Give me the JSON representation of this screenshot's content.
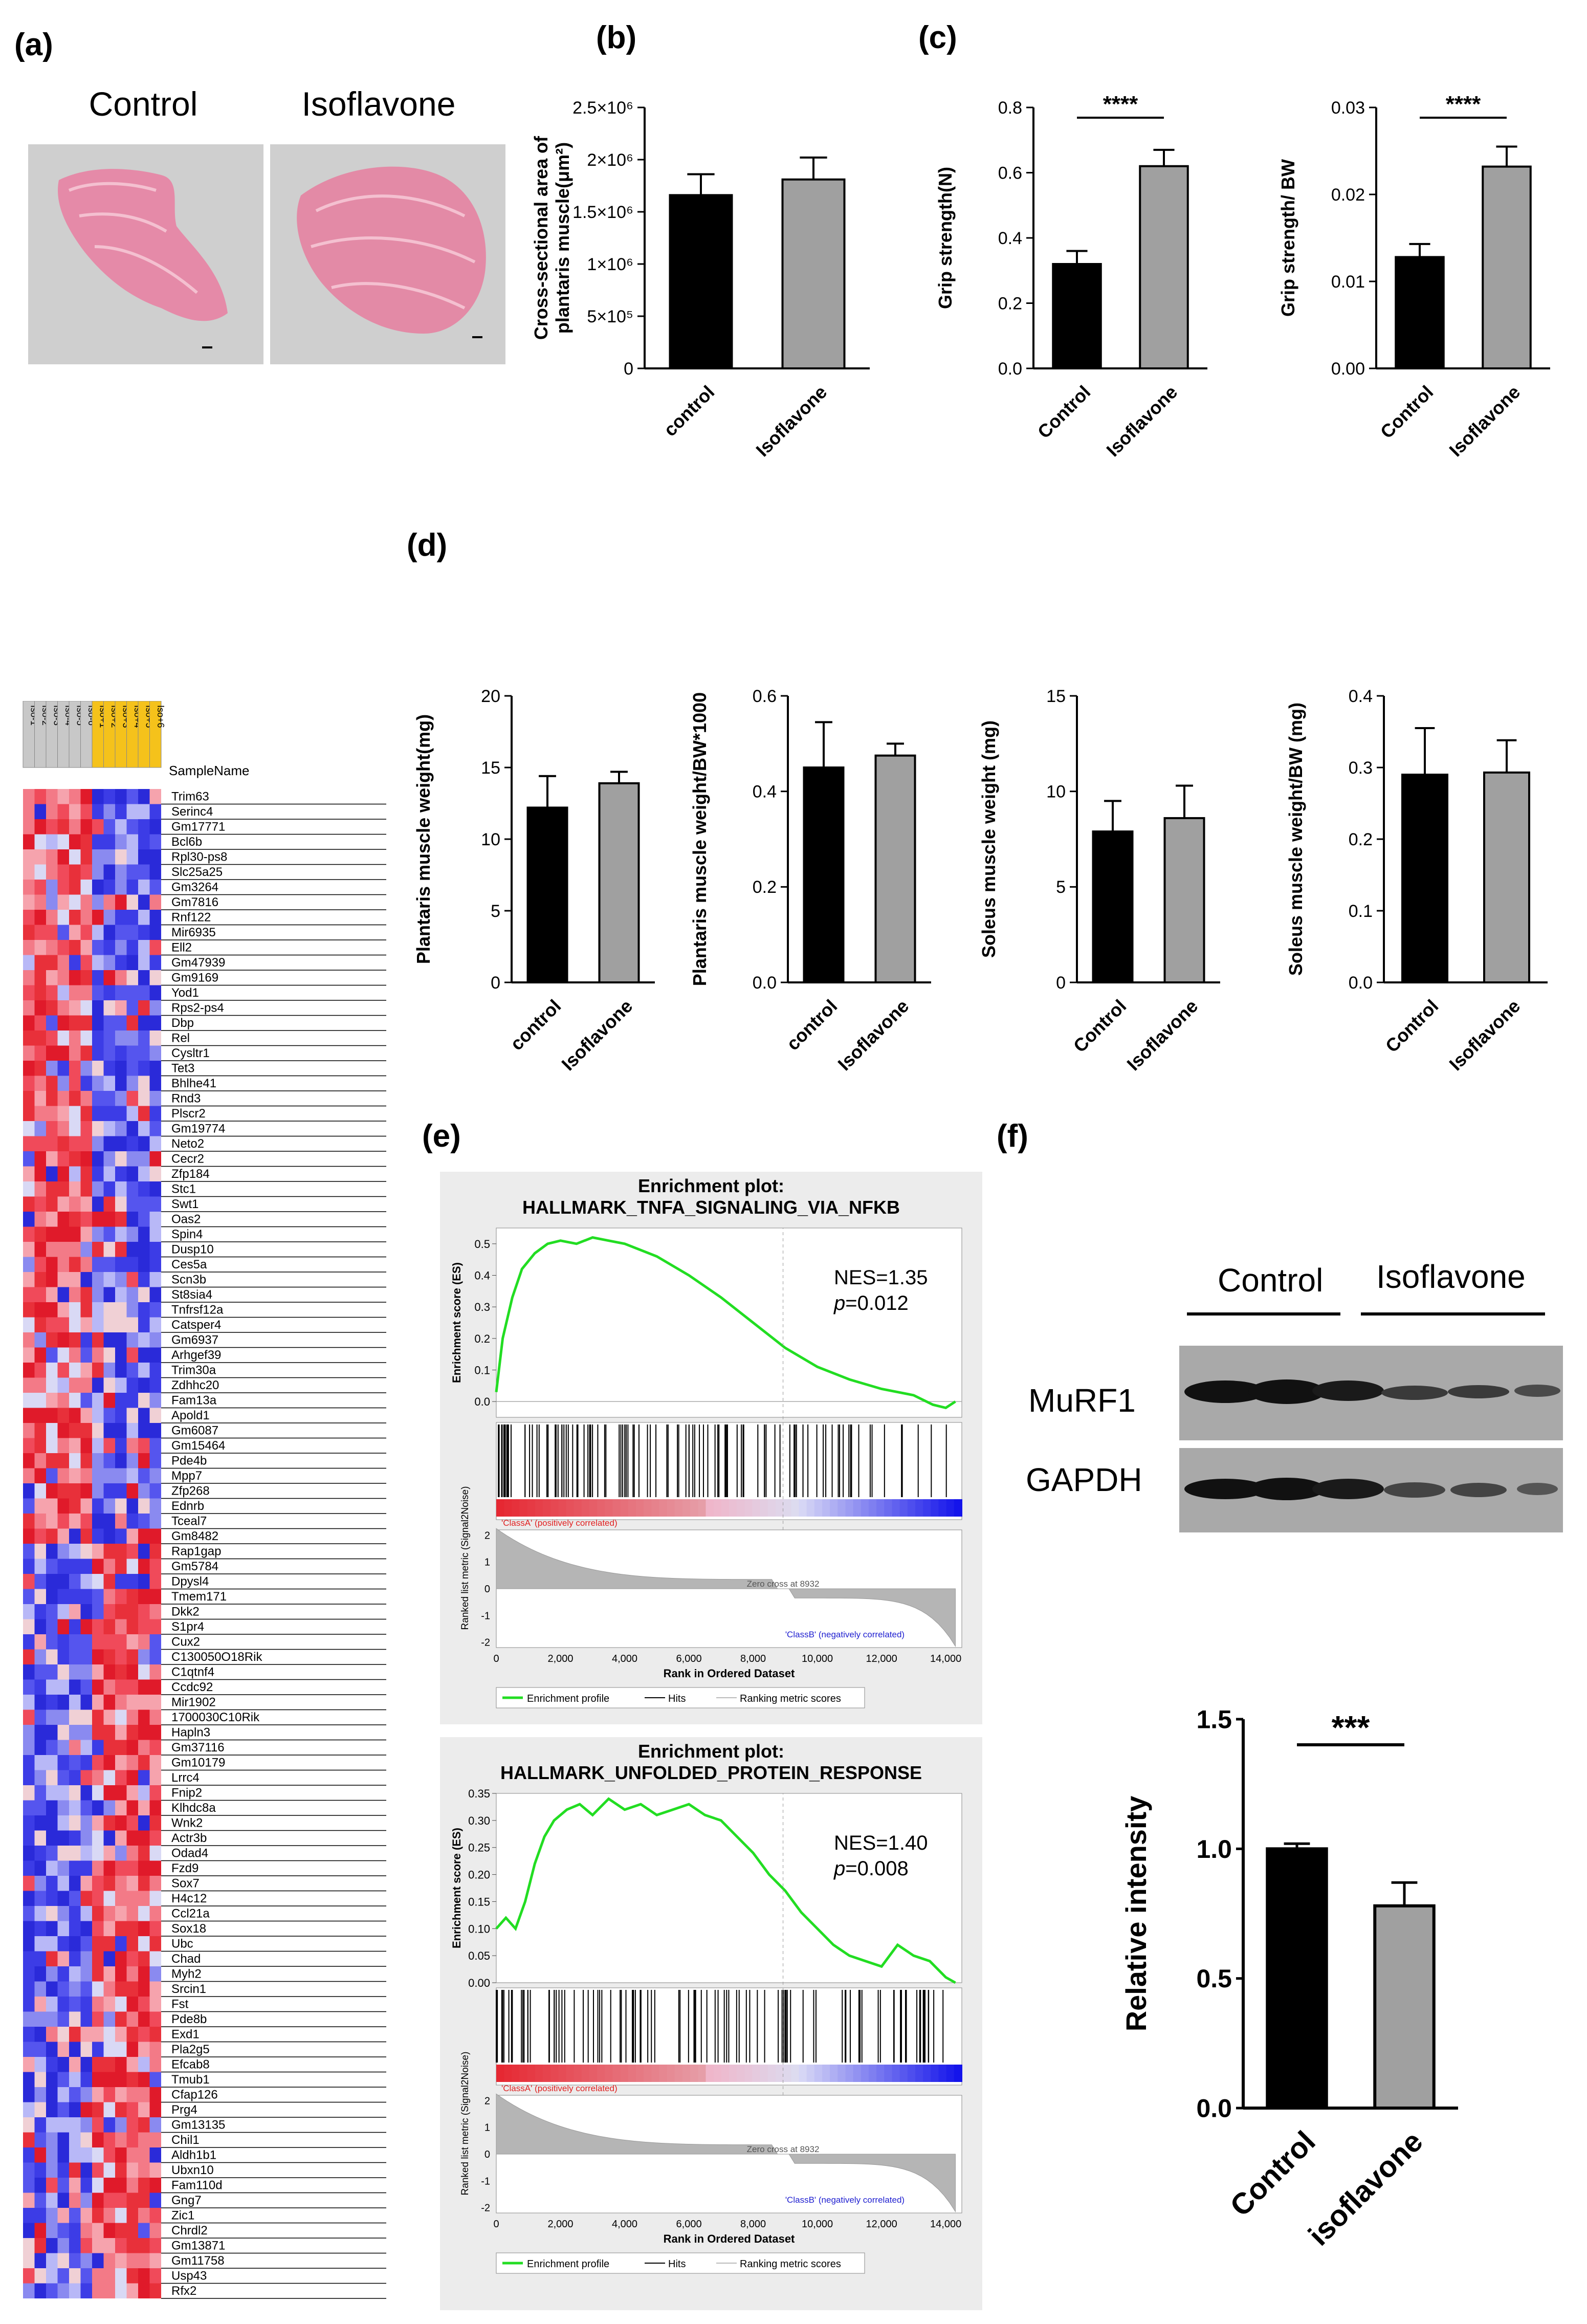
{
  "panels": {
    "a": "(a)",
    "b": "(b)",
    "c": "(c)",
    "d": "(d)",
    "e": "(e)",
    "f": "(f)"
  },
  "histology": {
    "labels": [
      "Control",
      "Isoflavone"
    ]
  },
  "chart_data": [
    {
      "id": "b",
      "type": "bar",
      "title": "",
      "ylabel": "Cross-sectional area of\nplantaris muscle(μm²)",
      "categories": [
        "control",
        "Isoflavone"
      ],
      "values": [
        1660000,
        1810000
      ],
      "errors": [
        200000,
        210000
      ],
      "colors": [
        "#000000",
        "#a0a0a0"
      ],
      "ylim": [
        0,
        2500000
      ],
      "yticks": [
        0,
        500000,
        1000000,
        1500000,
        2000000,
        2500000
      ],
      "yticklabels": [
        "0",
        "5×10⁵",
        "1×10⁶",
        "1.5×10⁶",
        "2×10⁶",
        "2.5×10⁶"
      ],
      "significance": ""
    },
    {
      "id": "c1",
      "type": "bar",
      "ylabel": "Grip strength(N)",
      "categories": [
        "Control",
        "Isoflavone"
      ],
      "values": [
        0.32,
        0.62
      ],
      "errors": [
        0.04,
        0.05
      ],
      "colors": [
        "#000000",
        "#a0a0a0"
      ],
      "ylim": [
        0,
        0.8
      ],
      "yticks": [
        0,
        0.2,
        0.4,
        0.6,
        0.8
      ],
      "yticklabels": [
        "0.0",
        "0.2",
        "0.4",
        "0.6",
        "0.8"
      ],
      "significance": "****"
    },
    {
      "id": "c2",
      "type": "bar",
      "ylabel": "Grip strength/ BW",
      "categories": [
        "Control",
        "Isoflavone"
      ],
      "values": [
        0.0128,
        0.0232
      ],
      "errors": [
        0.0015,
        0.0023
      ],
      "colors": [
        "#000000",
        "#a0a0a0"
      ],
      "ylim": [
        0,
        0.03
      ],
      "yticks": [
        0,
        0.01,
        0.02,
        0.03
      ],
      "yticklabels": [
        "0.00",
        "0.01",
        "0.02",
        "0.03"
      ],
      "significance": "****"
    },
    {
      "id": "d1",
      "type": "bar",
      "ylabel": "Plantaris muscle weight(mg)",
      "categories": [
        "control",
        "Isoflavone"
      ],
      "values": [
        12.2,
        13.9
      ],
      "errors": [
        2.2,
        0.8
      ],
      "colors": [
        "#000000",
        "#a0a0a0"
      ],
      "ylim": [
        0,
        20
      ],
      "yticks": [
        0,
        5,
        10,
        15,
        20
      ],
      "yticklabels": [
        "0",
        "5",
        "10",
        "15",
        "20"
      ],
      "significance": ""
    },
    {
      "id": "d2",
      "type": "bar",
      "ylabel": "Plantaris muscle weight/BW*1000",
      "categories": [
        "control",
        "Isoflavone"
      ],
      "values": [
        0.45,
        0.475
      ],
      "errors": [
        0.095,
        0.025
      ],
      "colors": [
        "#000000",
        "#a0a0a0"
      ],
      "ylim": [
        0,
        0.6
      ],
      "yticks": [
        0,
        0.2,
        0.4,
        0.6
      ],
      "yticklabels": [
        "0.0",
        "0.2",
        "0.4",
        "0.6"
      ],
      "significance": ""
    },
    {
      "id": "d3",
      "type": "bar",
      "ylabel": "Soleus muscle weight (mg)",
      "categories": [
        "Control",
        "Isoflavone"
      ],
      "values": [
        7.9,
        8.6
      ],
      "errors": [
        1.6,
        1.7
      ],
      "colors": [
        "#000000",
        "#a0a0a0"
      ],
      "ylim": [
        0,
        15
      ],
      "yticks": [
        0,
        5,
        10,
        15
      ],
      "yticklabels": [
        "0",
        "5",
        "10",
        "15"
      ],
      "significance": ""
    },
    {
      "id": "d4",
      "type": "bar",
      "ylabel": "Soleus muscle weight/BW (mg)",
      "categories": [
        "Control",
        "Isoflavone"
      ],
      "values": [
        0.29,
        0.293
      ],
      "errors": [
        0.065,
        0.045
      ],
      "colors": [
        "#000000",
        "#a0a0a0"
      ],
      "ylim": [
        0,
        0.4
      ],
      "yticks": [
        0,
        0.1,
        0.2,
        0.3,
        0.4
      ],
      "yticklabels": [
        "0.0",
        "0.1",
        "0.2",
        "0.3",
        "0.4"
      ],
      "significance": ""
    },
    {
      "id": "f",
      "type": "bar",
      "ylabel": "Relative intensity",
      "categories": [
        "Control",
        "isoflavone"
      ],
      "values": [
        1.0,
        0.78
      ],
      "errors": [
        0.02,
        0.09
      ],
      "colors": [
        "#000000",
        "#a0a0a0"
      ],
      "ylim": [
        0,
        1.5
      ],
      "yticks": [
        0,
        0.5,
        1.0,
        1.5
      ],
      "yticklabels": [
        "0.0",
        "0.5",
        "1.0",
        "1.5"
      ],
      "significance": "***"
    },
    {
      "id": "e1",
      "type": "line",
      "title": "Enrichment plot:\nHALLMARK_TNFA_SIGNALING_VIA_NFKB",
      "ylabel": "Enrichment score (ES)",
      "xlabel": "Rank in Ordered Dataset",
      "nes": "NES=1.35",
      "p": "=0.012",
      "es_points": [
        [
          0,
          0.03
        ],
        [
          200,
          0.2
        ],
        [
          500,
          0.33
        ],
        [
          800,
          0.42
        ],
        [
          1200,
          0.47
        ],
        [
          1600,
          0.5
        ],
        [
          2000,
          0.51
        ],
        [
          2500,
          0.5
        ],
        [
          3000,
          0.52
        ],
        [
          3500,
          0.51
        ],
        [
          4000,
          0.5
        ],
        [
          5000,
          0.46
        ],
        [
          6000,
          0.4
        ],
        [
          7000,
          0.33
        ],
        [
          8000,
          0.25
        ],
        [
          9000,
          0.17
        ],
        [
          10000,
          0.11
        ],
        [
          11000,
          0.07
        ],
        [
          12000,
          0.04
        ],
        [
          13000,
          0.02
        ],
        [
          13600,
          -0.01
        ],
        [
          14000,
          -0.02
        ],
        [
          14300,
          0.0
        ]
      ],
      "ylim": [
        -0.05,
        0.55
      ],
      "yticklabels": [
        "0.0",
        "0.1",
        "0.2",
        "0.3",
        "0.4",
        "0.5"
      ],
      "xticklabels": [
        "0",
        "2,000",
        "4,000",
        "6,000",
        "8,000",
        "10,000",
        "12,000",
        "14,000"
      ],
      "classA": "'ClassA' (positively correlated)",
      "classB": "'ClassB' (negatively correlated)",
      "zerocross": "Zero cross at 8932",
      "rankylabel": "Ranked list metric (Signal2Noise)",
      "rankticks": [
        "2",
        "1",
        "0",
        "-1",
        "-2"
      ],
      "legend": [
        "Enrichment profile",
        "Hits",
        "Ranking metric scores"
      ]
    },
    {
      "id": "e2",
      "type": "line",
      "title": "Enrichment plot:\nHALLMARK_UNFOLDED_PROTEIN_RESPONSE",
      "ylabel": "Enrichment score (ES)",
      "xlabel": "Rank in Ordered Dataset",
      "nes": "NES=1.40",
      "p": "=0.008",
      "es_points": [
        [
          0,
          0.1
        ],
        [
          300,
          0.12
        ],
        [
          600,
          0.1
        ],
        [
          900,
          0.15
        ],
        [
          1200,
          0.22
        ],
        [
          1500,
          0.27
        ],
        [
          1800,
          0.3
        ],
        [
          2200,
          0.32
        ],
        [
          2600,
          0.33
        ],
        [
          3000,
          0.31
        ],
        [
          3500,
          0.34
        ],
        [
          4000,
          0.32
        ],
        [
          4500,
          0.33
        ],
        [
          5000,
          0.31
        ],
        [
          5500,
          0.32
        ],
        [
          6000,
          0.33
        ],
        [
          6500,
          0.31
        ],
        [
          7000,
          0.3
        ],
        [
          7500,
          0.27
        ],
        [
          8000,
          0.24
        ],
        [
          8500,
          0.2
        ],
        [
          9000,
          0.17
        ],
        [
          9500,
          0.13
        ],
        [
          10000,
          0.1
        ],
        [
          10500,
          0.07
        ],
        [
          11000,
          0.05
        ],
        [
          11500,
          0.04
        ],
        [
          12000,
          0.03
        ],
        [
          12500,
          0.07
        ],
        [
          13000,
          0.05
        ],
        [
          13500,
          0.04
        ],
        [
          14000,
          0.01
        ],
        [
          14300,
          0.0
        ]
      ],
      "ylim": [
        0,
        0.35
      ],
      "yticklabels": [
        "0.00",
        "0.05",
        "0.10",
        "0.15",
        "0.20",
        "0.25",
        "0.30",
        "0.35"
      ],
      "xticklabels": [
        "0",
        "2,000",
        "4,000",
        "6,000",
        "8,000",
        "10,000",
        "12,000",
        "14,000"
      ],
      "classA": "'ClassA' (positively correlated)",
      "classB": "'ClassB' (negatively correlated)",
      "zerocross": "Zero cross at 8932",
      "rankylabel": "Ranked list metric (Signal2Noise)",
      "rankticks": [
        "2",
        "1",
        "0",
        "-1",
        "-2"
      ],
      "legend": [
        "Enrichment profile",
        "Hits",
        "Ranking metric scores"
      ]
    }
  ],
  "heatmap": {
    "samples": [
      "Iso-1",
      "Iso-2",
      "Iso-3",
      "Iso-4",
      "Iso-5",
      "Iso-6",
      "Iso+1",
      "Iso+2",
      "Iso+3",
      "Iso+4",
      "Iso+5",
      "Iso+6"
    ],
    "header": "SampleName",
    "genes": [
      "Trim63",
      "Serinc4",
      "Gm17771",
      "Bcl6b",
      "Rpl30-ps8",
      "Slc25a25",
      "Gm3264",
      "Gm7816",
      "Rnf122",
      "Mir6935",
      "Ell2",
      "Gm47939",
      "Gm9169",
      "Yod1",
      "Rps2-ps4",
      "Dbp",
      "Rel",
      "Cysltr1",
      "Tet3",
      "Bhlhe41",
      "Rnd3",
      "Plscr2",
      "Gm19774",
      "Neto2",
      "Cecr2",
      "Zfp184",
      "Stc1",
      "Swt1",
      "Oas2",
      "Spin4",
      "Dusp10",
      "Ces5a",
      "Scn3b",
      "St8sia4",
      "Tnfrsf12a",
      "Catsper4",
      "Gm6937",
      "Arhgef39",
      "Trim30a",
      "Zdhhc20",
      "Fam13a",
      "Apold1",
      "Gm6087",
      "Gm15464",
      "Pde4b",
      "Mpp7",
      "Zfp268",
      "Ednrb",
      "Tceal7",
      "Gm8482",
      "Rap1gap",
      "Gm5784",
      "Dpysl4",
      "Tmem171",
      "Dkk2",
      "S1pr4",
      "Cux2",
      "C130050O18Rik",
      "C1qtnf4",
      "Ccdc92",
      "Mir1902",
      "1700030C10Rik",
      "Hapln3",
      "Gm37116",
      "Gm10179",
      "Lrrc4",
      "Fnip2",
      "Klhdc8a",
      "Wnk2",
      "Actr3b",
      "Odad4",
      "Fzd9",
      "Sox7",
      "H4c12",
      "Ccl21a",
      "Sox18",
      "Ubc",
      "Chad",
      "Myh2",
      "Srcin1",
      "Fst",
      "Pde8b",
      "Exd1",
      "Pla2g5",
      "Efcab8",
      "Tmub1",
      "Cfap126",
      "Prg4",
      "Gm13135",
      "Chil1",
      "Aldh1b1",
      "Ubxn10",
      "Fam110d",
      "Gng7",
      "Zic1",
      "Chrdl2",
      "Gm13871",
      "Gm11758",
      "Usp43",
      "Rfx2"
    ]
  },
  "western": {
    "groups": [
      "Control",
      "Isoflavone"
    ],
    "bands": [
      "MuRF1",
      "GAPDH"
    ]
  }
}
